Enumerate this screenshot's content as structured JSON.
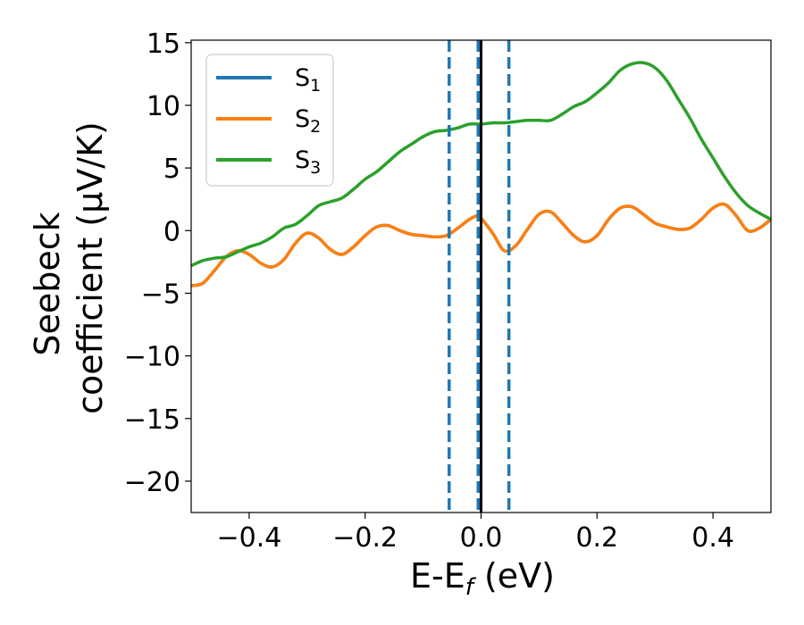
{
  "chart_data": {
    "type": "line",
    "xlabel": {
      "prefix": "E-E",
      "sub": "f",
      "suffix": " (eV)"
    },
    "ylabel": {
      "line1": "Seebeck",
      "line2": "coefficient  (μV/K)"
    },
    "xlim": [
      -0.5,
      0.5
    ],
    "ylim": [
      -22.5,
      15.2
    ],
    "xticks": [
      -0.4,
      -0.2,
      0.0,
      0.2,
      0.4
    ],
    "xtick_labels": [
      "−0.4",
      "−0.2",
      "0.0",
      "0.2",
      "0.4"
    ],
    "yticks": [
      -20,
      -15,
      -10,
      -5,
      0,
      5,
      10,
      15
    ],
    "ytick_labels": [
      "−20",
      "−15",
      "−10",
      "−5",
      "0",
      "5",
      "10",
      "15"
    ],
    "grid": false,
    "legend_position": "top-left",
    "vlines": [
      {
        "x": -0.055,
        "style": "dashed",
        "color": "#1f77b4"
      },
      {
        "x": -0.005,
        "style": "dashed",
        "color": "#1f77b4"
      },
      {
        "x": 0.0,
        "style": "solid",
        "color": "#000000"
      },
      {
        "x": 0.048,
        "style": "dashed",
        "color": "#1f77b4"
      }
    ],
    "series": [
      {
        "name": "S",
        "sub": "1",
        "color": "#1f77b4",
        "x": [
          -0.5,
          -0.48,
          -0.46,
          -0.44,
          -0.42,
          -0.4,
          -0.38,
          -0.36,
          -0.34,
          -0.32,
          -0.3,
          -0.28,
          -0.26,
          -0.24,
          -0.22,
          -0.2,
          -0.18,
          -0.16,
          -0.14,
          -0.12,
          -0.1,
          -0.08,
          -0.06,
          -0.04,
          -0.02,
          -0.005,
          0.0,
          0.02,
          0.04,
          0.06,
          0.08,
          0.1,
          0.12,
          0.14,
          0.16,
          0.18,
          0.2,
          0.22,
          0.24,
          0.26,
          0.28,
          0.3,
          0.32,
          0.34,
          0.36,
          0.38,
          0.4,
          0.42,
          0.44,
          0.46,
          0.48,
          0.5
        ],
        "y": [
          -4.4,
          -4.2,
          -3.2,
          -2.1,
          -1.6,
          -1.9,
          -2.6,
          -2.9,
          -2.3,
          -1.0,
          -0.2,
          -0.6,
          -1.5,
          -1.9,
          -1.3,
          -0.4,
          0.3,
          0.4,
          0.0,
          -0.3,
          -0.4,
          -0.5,
          -0.4,
          0.2,
          0.9,
          1.2,
          1.0,
          -0.2,
          -1.6,
          -1.2,
          0.1,
          1.3,
          1.5,
          0.6,
          -0.4,
          -0.9,
          -0.4,
          0.9,
          1.8,
          1.9,
          1.3,
          0.6,
          0.3,
          0.1,
          0.2,
          0.9,
          1.8,
          2.1,
          1.2,
          0.0,
          0.2,
          0.9
        ]
      },
      {
        "name": "S",
        "sub": "2",
        "color": "#ff7f0e",
        "x": [
          -0.5,
          -0.48,
          -0.46,
          -0.44,
          -0.42,
          -0.4,
          -0.38,
          -0.36,
          -0.34,
          -0.32,
          -0.3,
          -0.28,
          -0.26,
          -0.24,
          -0.22,
          -0.2,
          -0.18,
          -0.16,
          -0.14,
          -0.12,
          -0.1,
          -0.08,
          -0.06,
          -0.04,
          -0.02,
          -0.005,
          0.0,
          0.02,
          0.04,
          0.06,
          0.08,
          0.1,
          0.12,
          0.14,
          0.16,
          0.18,
          0.2,
          0.22,
          0.24,
          0.26,
          0.28,
          0.3,
          0.32,
          0.34,
          0.36,
          0.38,
          0.4,
          0.42,
          0.44,
          0.46,
          0.48,
          0.5
        ],
        "y": [
          -4.4,
          -4.2,
          -3.2,
          -2.1,
          -1.6,
          -1.9,
          -2.6,
          -2.9,
          -2.3,
          -1.0,
          -0.2,
          -0.6,
          -1.5,
          -1.9,
          -1.3,
          -0.4,
          0.3,
          0.4,
          0.0,
          -0.3,
          -0.4,
          -0.5,
          -0.4,
          0.2,
          0.9,
          1.2,
          1.0,
          -0.2,
          -1.6,
          -1.2,
          0.1,
          1.3,
          1.5,
          0.6,
          -0.4,
          -0.9,
          -0.4,
          0.9,
          1.8,
          1.9,
          1.3,
          0.6,
          0.3,
          0.1,
          0.2,
          0.9,
          1.8,
          2.1,
          1.2,
          0.0,
          0.2,
          0.9
        ]
      },
      {
        "name": "S",
        "sub": "3",
        "color": "#2ca02c",
        "x": [
          -0.5,
          -0.48,
          -0.46,
          -0.44,
          -0.42,
          -0.4,
          -0.38,
          -0.36,
          -0.34,
          -0.32,
          -0.3,
          -0.28,
          -0.26,
          -0.24,
          -0.22,
          -0.2,
          -0.18,
          -0.16,
          -0.14,
          -0.12,
          -0.1,
          -0.08,
          -0.06,
          -0.04,
          -0.02,
          0.0,
          0.02,
          0.04,
          0.06,
          0.08,
          0.1,
          0.12,
          0.14,
          0.16,
          0.18,
          0.2,
          0.22,
          0.24,
          0.26,
          0.28,
          0.3,
          0.32,
          0.34,
          0.36,
          0.38,
          0.4,
          0.42,
          0.44,
          0.46,
          0.48,
          0.5
        ],
        "y": [
          -2.8,
          -2.4,
          -2.2,
          -2.1,
          -1.7,
          -1.3,
          -1.0,
          -0.5,
          0.2,
          0.5,
          1.2,
          2.0,
          2.3,
          2.6,
          3.3,
          4.1,
          4.7,
          5.5,
          6.3,
          6.9,
          7.5,
          7.9,
          8.0,
          8.2,
          8.5,
          8.5,
          8.6,
          8.6,
          8.7,
          8.8,
          8.8,
          8.8,
          9.3,
          9.9,
          10.3,
          11.0,
          11.8,
          12.8,
          13.3,
          13.4,
          13.0,
          12.0,
          10.5,
          9.0,
          7.3,
          5.8,
          4.3,
          3.0,
          2.0,
          1.4,
          0.9
        ]
      }
    ]
  }
}
